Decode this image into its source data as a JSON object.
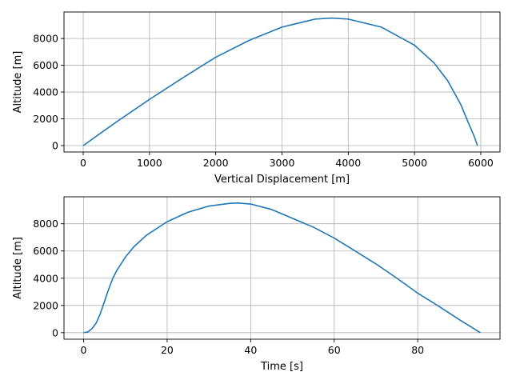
{
  "chart_data": [
    {
      "type": "line",
      "xlabel": "Vertical Displacement [m]",
      "ylabel": "Altitude [m]",
      "xlim": [
        -290,
        6290
      ],
      "ylim": [
        -480,
        9980
      ],
      "xticks": [
        0,
        1000,
        2000,
        3000,
        4000,
        5000,
        6000
      ],
      "yticks": [
        0,
        2000,
        4000,
        6000,
        8000
      ],
      "grid": true,
      "series": [
        {
          "color": "#1f77b4",
          "points": [
            [
              0,
              0
            ],
            [
              500,
              1760
            ],
            [
              1000,
              3450
            ],
            [
              1500,
              5050
            ],
            [
              2000,
              6600
            ],
            [
              2500,
              7850
            ],
            [
              3000,
              8850
            ],
            [
              3500,
              9450
            ],
            [
              3750,
              9530
            ],
            [
              4000,
              9450
            ],
            [
              4500,
              8850
            ],
            [
              5000,
              7500
            ],
            [
              5300,
              6150
            ],
            [
              5500,
              4850
            ],
            [
              5700,
              3050
            ],
            [
              5800,
              1850
            ],
            [
              5900,
              700
            ],
            [
              5950,
              0
            ]
          ]
        }
      ]
    },
    {
      "type": "line",
      "xlabel": "Time [s]",
      "ylabel": "Altitude [m]",
      "xlim": [
        -4.7,
        99.7
      ],
      "ylim": [
        -480,
        9980
      ],
      "xticks": [
        0,
        20,
        40,
        60,
        80
      ],
      "yticks": [
        0,
        2000,
        4000,
        6000,
        8000
      ],
      "grid": true,
      "series": [
        {
          "color": "#1f77b4",
          "points": [
            [
              0,
              0
            ],
            [
              1,
              50
            ],
            [
              2,
              300
            ],
            [
              3,
              700
            ],
            [
              4,
              1400
            ],
            [
              5,
              2300
            ],
            [
              6,
              3200
            ],
            [
              7,
              4000
            ],
            [
              8,
              4600
            ],
            [
              10,
              5550
            ],
            [
              12,
              6300
            ],
            [
              15,
              7150
            ],
            [
              20,
              8150
            ],
            [
              25,
              8850
            ],
            [
              30,
              9300
            ],
            [
              35,
              9500
            ],
            [
              37,
              9520
            ],
            [
              40,
              9450
            ],
            [
              45,
              9050
            ],
            [
              50,
              8400
            ],
            [
              55,
              7750
            ],
            [
              60,
              6950
            ],
            [
              65,
              6000
            ],
            [
              70,
              5050
            ],
            [
              75,
              4000
            ],
            [
              80,
              2900
            ],
            [
              85,
              1950
            ],
            [
              90,
              950
            ],
            [
              95,
              0
            ]
          ]
        }
      ]
    }
  ]
}
